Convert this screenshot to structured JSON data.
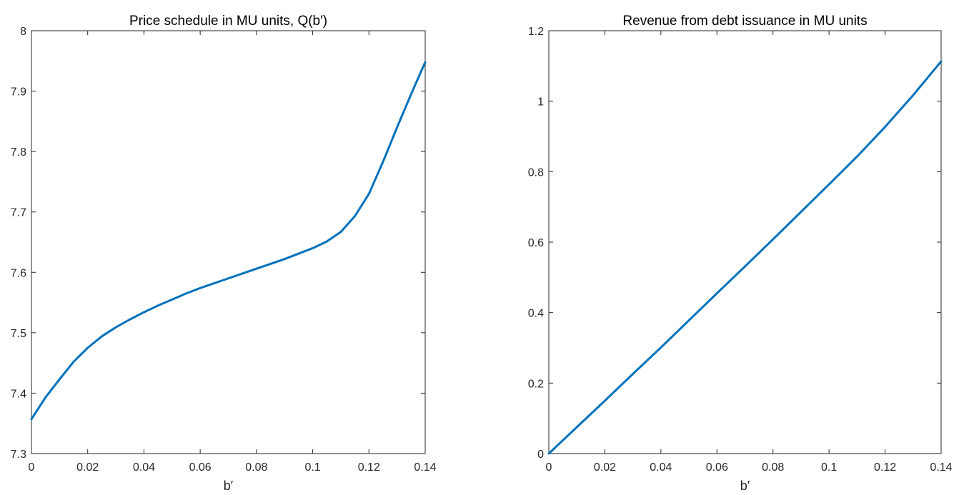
{
  "chart_data": [
    {
      "type": "line",
      "title": "Price schedule in MU units, Q(b′)",
      "xlabel": "b′",
      "ylabel": "",
      "xlim": [
        0,
        0.14
      ],
      "ylim": [
        7.3,
        8.0
      ],
      "xticks": [
        "0",
        "0.02",
        "0.04",
        "0.06",
        "0.08",
        "0.1",
        "0.12",
        "0.14"
      ],
      "yticks": [
        "7.3",
        "7.4",
        "7.5",
        "7.6",
        "7.7",
        "7.8",
        "7.9",
        "8"
      ],
      "grid": false,
      "line_color": "#0072BD",
      "series": [
        {
          "x": [
            0,
            0.005,
            0.01,
            0.015,
            0.02,
            0.025,
            0.03,
            0.035,
            0.04,
            0.045,
            0.05,
            0.055,
            0.06,
            0.065,
            0.07,
            0.075,
            0.08,
            0.085,
            0.09,
            0.095,
            0.1,
            0.105,
            0.11,
            0.115,
            0.12,
            0.125,
            0.13,
            0.135,
            0.14
          ],
          "y": [
            7.357,
            7.393,
            7.423,
            7.452,
            7.475,
            7.494,
            7.509,
            7.522,
            7.534,
            7.545,
            7.555,
            7.565,
            7.574,
            7.582,
            7.59,
            7.598,
            7.606,
            7.614,
            7.622,
            7.631,
            7.64,
            7.651,
            7.667,
            7.693,
            7.73,
            7.783,
            7.84,
            7.895,
            7.948
          ]
        }
      ]
    },
    {
      "type": "line",
      "title": "Revenue from debt issuance in MU units",
      "xlabel": "b′",
      "ylabel": "",
      "xlim": [
        0,
        0.14
      ],
      "ylim": [
        0,
        1.2
      ],
      "xticks": [
        "0",
        "0.02",
        "0.04",
        "0.06",
        "0.08",
        "0.1",
        "0.12",
        "0.14"
      ],
      "yticks": [
        "0",
        "0.2",
        "0.4",
        "0.6",
        "0.8",
        "1",
        "1.2"
      ],
      "grid": false,
      "line_color": "#0072BD",
      "series": [
        {
          "x": [
            0,
            0.01,
            0.02,
            0.03,
            0.04,
            0.05,
            0.06,
            0.07,
            0.08,
            0.09,
            0.1,
            0.11,
            0.12,
            0.13,
            0.14
          ],
          "y": [
            0,
            0.075,
            0.15,
            0.226,
            0.301,
            0.378,
            0.455,
            0.531,
            0.608,
            0.686,
            0.764,
            0.843,
            0.927,
            1.017,
            1.113
          ]
        }
      ]
    }
  ]
}
